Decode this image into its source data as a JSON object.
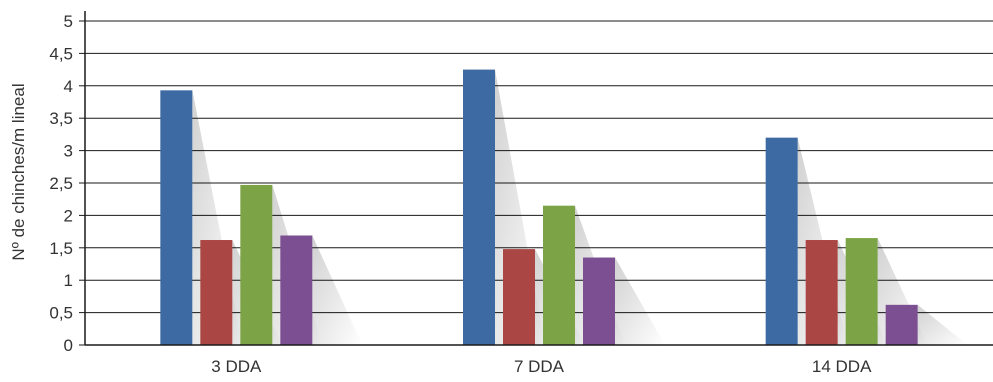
{
  "chart_data": {
    "type": "bar",
    "title": "",
    "xlabel": "",
    "ylabel": "Nº de chinches/m lineal",
    "categories": [
      "3 DDA",
      "7 DDA",
      "14 DDA"
    ],
    "ylim": [
      0,
      5
    ],
    "yticks": [
      "0",
      "0,5",
      "1",
      "1,5",
      "2",
      "2,5",
      "3",
      "3,5",
      "4",
      "4,5",
      "5"
    ],
    "grid": true,
    "legend": "none",
    "series": [
      {
        "values": [
          3.93,
          4.25,
          3.2
        ],
        "color": "#3d6aa3"
      },
      {
        "values": [
          1.62,
          1.48,
          1.62
        ],
        "color": "#aa4643"
      },
      {
        "values": [
          2.47,
          2.15,
          1.65
        ],
        "color": "#7ca447"
      },
      {
        "values": [
          1.69,
          1.35,
          0.62
        ],
        "color": "#7b4f91"
      }
    ]
  }
}
